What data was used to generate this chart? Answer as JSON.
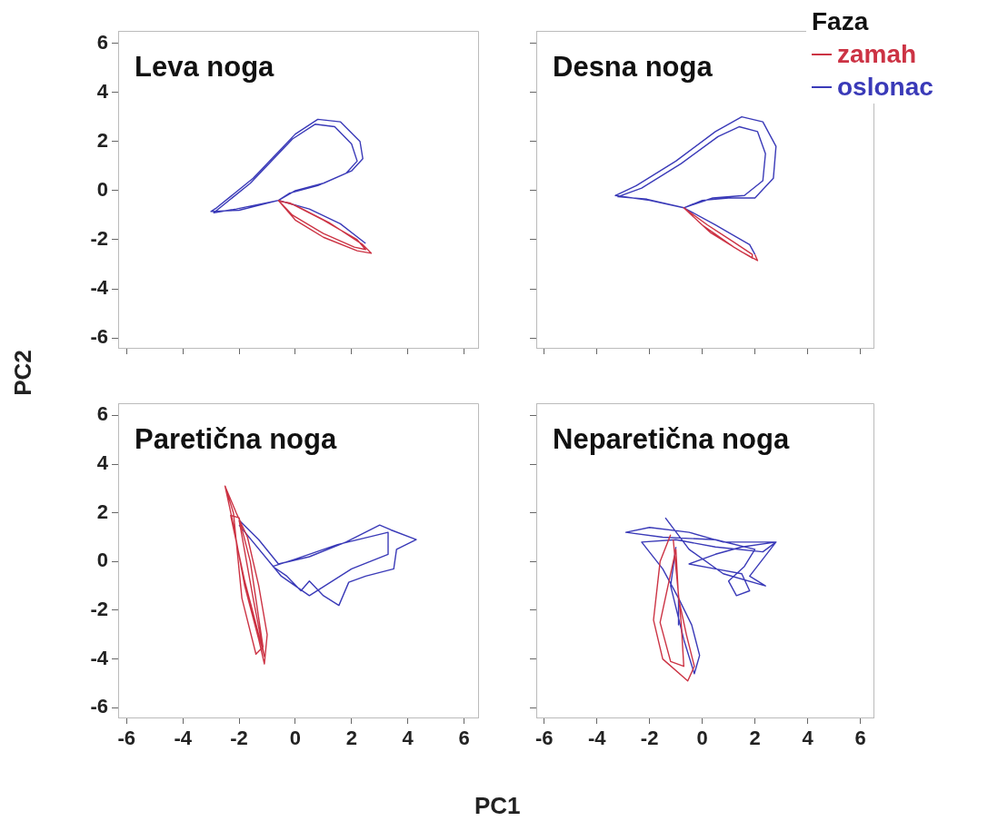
{
  "chart_data": [
    {
      "type": "line",
      "title": "Leva noga",
      "ylabel": "PC2",
      "xlim": [
        -6.3,
        6.5
      ],
      "ylim": [
        -6.4,
        6.5
      ],
      "xticks": [
        -6,
        -4,
        -2,
        0,
        2,
        4,
        6
      ],
      "yticks": [
        -6,
        -4,
        -2,
        0,
        2,
        4,
        6
      ],
      "grid": false,
      "tick_labels": "y",
      "series": [
        {
          "color": "#cc3344",
          "x": [
            -0.6,
            0.0,
            1.0,
            2.2,
            2.7,
            2.4,
            1.2,
            0.0,
            -0.6,
            -0.1,
            1.0,
            2.1,
            2.5,
            2.2,
            1.0,
            -0.2,
            -0.5
          ],
          "values": [
            -0.4,
            -1.2,
            -1.9,
            -2.45,
            -2.55,
            -2.2,
            -1.3,
            -0.6,
            -0.4,
            -1.0,
            -1.75,
            -2.3,
            -2.4,
            -2.0,
            -1.2,
            -0.5,
            -0.45
          ]
        },
        {
          "color": "#3a3ab8",
          "x": [
            -0.6,
            -2.0,
            -3.0,
            -2.8,
            -1.5,
            0.0,
            0.8,
            1.6,
            2.3,
            2.4,
            2.0,
            1.0,
            0.0,
            -0.6,
            -2.1,
            -2.9,
            -1.6,
            -0.1,
            0.7,
            1.4,
            2.0,
            2.2,
            1.8,
            0.8,
            -0.2,
            -0.6,
            0.5,
            1.6,
            2.5
          ],
          "values": [
            -0.4,
            -0.8,
            -0.85,
            -0.7,
            0.5,
            2.3,
            2.9,
            2.8,
            2.0,
            1.3,
            0.8,
            0.3,
            0.0,
            -0.4,
            -0.75,
            -0.9,
            0.3,
            2.1,
            2.7,
            2.6,
            1.9,
            1.2,
            0.7,
            0.2,
            -0.1,
            -0.4,
            -0.75,
            -1.35,
            -2.15
          ]
        }
      ]
    },
    {
      "type": "line",
      "title": "Desna noga",
      "legend_title": "Faza",
      "legend": "top right",
      "xlim": [
        -6.3,
        6.5
      ],
      "ylim": [
        -6.4,
        6.5
      ],
      "xticks": [
        -6,
        -4,
        -2,
        0,
        2,
        4,
        6
      ],
      "yticks": [
        -6,
        -4,
        -2,
        0,
        2,
        4,
        6
      ],
      "grid": false,
      "tick_labels": false,
      "series": [
        {
          "name": "zamah",
          "color": "#cc3344",
          "x": [
            2.0,
            2.1,
            1.5,
            0.3,
            -0.7,
            0.2,
            1.2,
            1.9,
            1.9,
            1.2,
            0.0,
            -0.7
          ],
          "values": [
            -2.6,
            -2.85,
            -2.5,
            -1.7,
            -0.7,
            -1.4,
            -2.1,
            -2.6,
            -2.75,
            -2.3,
            -1.4,
            -0.7
          ]
        },
        {
          "name": "oslonac",
          "color": "#3a3ab8",
          "x": [
            -0.7,
            -2.0,
            -3.3,
            -2.5,
            -1.0,
            0.5,
            1.5,
            2.3,
            2.8,
            2.7,
            2.0,
            1.0,
            0.0,
            -0.7,
            -2.1,
            -3.2,
            -2.3,
            -0.8,
            0.6,
            1.4,
            2.1,
            2.4,
            2.3,
            1.6,
            0.4,
            -0.7,
            0.5,
            1.8,
            2.0
          ],
          "values": [
            -0.7,
            -0.4,
            -0.2,
            0.2,
            1.2,
            2.4,
            3.0,
            2.8,
            1.8,
            0.5,
            -0.3,
            -0.3,
            -0.4,
            -0.7,
            -0.35,
            -0.25,
            0.1,
            1.1,
            2.2,
            2.6,
            2.4,
            1.5,
            0.4,
            -0.2,
            -0.3,
            -0.7,
            -1.4,
            -2.2,
            -2.6
          ]
        }
      ]
    },
    {
      "type": "line",
      "title": "Paretična noga",
      "xlabel": "PC1",
      "xlim": [
        -6.3,
        6.5
      ],
      "ylim": [
        -6.4,
        6.5
      ],
      "xticks": [
        -6,
        -4,
        -2,
        0,
        2,
        4,
        6
      ],
      "yticks": [
        -6,
        -4,
        -2,
        0,
        2,
        4,
        6
      ],
      "grid": false,
      "series": [
        {
          "color": "#cc3344",
          "x": [
            -2.5,
            -2.2,
            -1.8,
            -1.3,
            -1.1,
            -1.0,
            -1.3,
            -1.7,
            -2.1,
            -2.5,
            -2.2,
            -1.9,
            -1.4,
            -1.15,
            -1.6,
            -2.0,
            -2.3,
            -1.8,
            -1.3,
            -1.1,
            -1.5,
            -2.0
          ],
          "values": [
            3.1,
            1.5,
            -1.0,
            -3.2,
            -4.2,
            -3.0,
            -1.0,
            1.0,
            2.0,
            3.1,
            2.0,
            -1.5,
            -3.8,
            -3.5,
            0.0,
            1.8,
            1.9,
            -0.8,
            -3.0,
            -3.9,
            -1.5,
            1.7
          ]
        },
        {
          "color": "#3a3ab8",
          "x": [
            -2.0,
            -1.3,
            -0.6,
            0.5,
            1.8,
            3.0,
            3.4,
            4.3,
            3.6,
            3.5,
            2.5,
            1.9,
            1.55,
            1.0,
            0.5,
            0.2,
            -0.3,
            -0.8,
            0.0,
            1.5,
            3.3,
            3.3,
            2.0,
            0.5,
            -0.5,
            -2.0
          ],
          "values": [
            1.7,
            0.9,
            -0.1,
            0.2,
            0.8,
            1.5,
            1.3,
            0.9,
            0.5,
            -0.3,
            -0.6,
            -0.85,
            -1.8,
            -1.4,
            -0.8,
            -1.2,
            -0.6,
            -0.2,
            0.1,
            0.7,
            1.2,
            0.3,
            -0.3,
            -1.4,
            -0.6,
            1.5
          ]
        }
      ]
    },
    {
      "type": "line",
      "title": "Neparetična noga",
      "xlim": [
        -6.3,
        6.5
      ],
      "ylim": [
        -6.4,
        6.5
      ],
      "xticks": [
        -6,
        -4,
        -2,
        0,
        2,
        4,
        6
      ],
      "yticks": [
        -6,
        -4,
        -2,
        0,
        2,
        4,
        6
      ],
      "grid": false,
      "tick_labels": "x",
      "series": [
        {
          "color": "#cc3344",
          "x": [
            -1.2,
            -1.6,
            -1.85,
            -1.5,
            -0.55,
            -0.3,
            -0.6,
            -0.9,
            -1.0,
            -1.6,
            -1.2,
            -0.7,
            -0.8,
            -1.1
          ],
          "values": [
            1.1,
            0.0,
            -2.4,
            -4.0,
            -4.9,
            -4.3,
            -3.0,
            -1.5,
            0.5,
            -2.5,
            -4.1,
            -4.3,
            -2.5,
            0.9
          ]
        },
        {
          "color": "#3a3ab8",
          "x": [
            -1.4,
            -0.5,
            0.8,
            2.4,
            1.8,
            2.8,
            1.5,
            0.5,
            -0.5,
            0.5,
            1.5,
            1.8,
            1.3,
            1.0,
            1.6,
            2.0,
            0.5,
            -1.5,
            -2.9,
            -2.0,
            -0.5,
            0.8,
            2.8,
            2.3,
            0.5,
            -1.0,
            -2.3,
            -1.5,
            -0.9,
            -0.9,
            -0.9,
            -0.4,
            -0.1,
            -0.3,
            -0.7,
            -1.2,
            -1.0
          ],
          "values": [
            1.8,
            0.5,
            -0.5,
            -1.0,
            -0.6,
            0.8,
            0.6,
            0.3,
            -0.1,
            -0.3,
            -0.5,
            -1.2,
            -1.4,
            -0.8,
            -0.2,
            0.5,
            0.9,
            1.0,
            1.2,
            1.4,
            1.2,
            0.8,
            0.8,
            0.4,
            0.6,
            0.9,
            0.8,
            -0.3,
            -1.5,
            -2.6,
            -1.5,
            -2.6,
            -3.85,
            -4.6,
            -3.2,
            -1.0,
            0.6
          ]
        }
      ]
    }
  ]
}
